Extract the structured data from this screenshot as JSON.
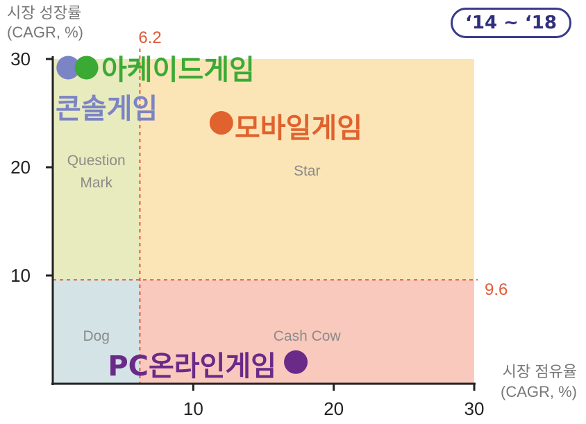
{
  "period_badge": "‘14 ~ ‘18",
  "chart_data": {
    "type": "scatter",
    "ylabel": [
      "시장 성장률",
      "(CAGR, %)"
    ],
    "xlabel": [
      "시장 점유율",
      "(CAGR, %)"
    ],
    "xlim": [
      0,
      30
    ],
    "ylim": [
      0,
      30
    ],
    "xticks": [
      "10",
      "20",
      "30"
    ],
    "yticks": [
      "10",
      "20",
      "30"
    ],
    "thresholds": {
      "x": 6.2,
      "y": 9.6,
      "x_label": "6.2",
      "y_label": "9.6",
      "color": "#e05a3a"
    },
    "quadrants": [
      {
        "name": "Question Mark",
        "lines": [
          "Question",
          "Mark"
        ],
        "color": "#e8ebbd"
      },
      {
        "name": "Star",
        "lines": [
          "Star"
        ],
        "color": "#fbe5b6"
      },
      {
        "name": "Dog",
        "lines": [
          "Dog"
        ],
        "color": "#d3e3e6"
      },
      {
        "name": "Cash Cow",
        "lines": [
          "Cash Cow"
        ],
        "color": "#f9c9bd"
      }
    ],
    "points": [
      {
        "label": "콘솔게임",
        "x": 1.1,
        "y": 29.2,
        "color": "#7b84c4"
      },
      {
        "label": "아케이드게임",
        "x": 2.4,
        "y": 29.2,
        "color": "#3aaa35"
      },
      {
        "label": "모바일게임",
        "x": 12.0,
        "y": 24.1,
        "color": "#e0622e"
      },
      {
        "label": "PC온라인게임",
        "x": 17.3,
        "y": 2.0,
        "color": "#6a2a88"
      }
    ]
  }
}
